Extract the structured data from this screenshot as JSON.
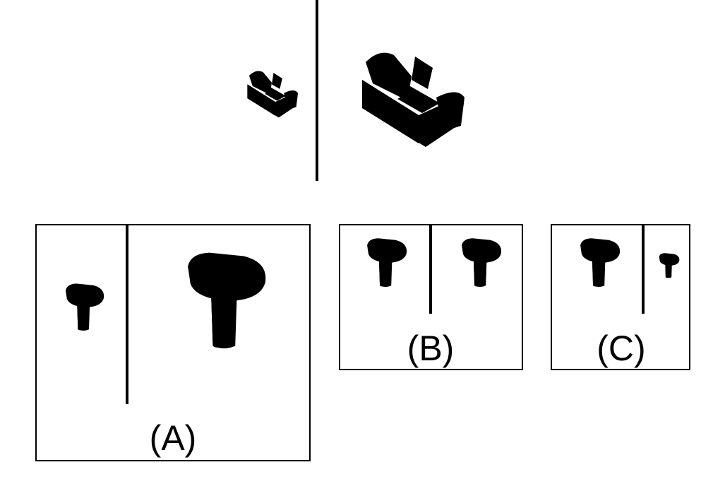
{
  "colors": {
    "blue": "#5546e8",
    "blue_dark": "#3b2bc0",
    "green": "#4cc23c",
    "green_dark": "#2f9a24"
  },
  "example": {
    "left_object": "sofa-icon",
    "right_object": "sofa-icon"
  },
  "options": [
    {
      "label": "(A)",
      "left_object": "sink-icon",
      "right_object": "sink-icon"
    },
    {
      "label": "(B)",
      "left_object": "sink-icon",
      "right_object": "sink-icon"
    },
    {
      "label": "(C)",
      "left_object": "sink-icon",
      "right_object": "sink-icon"
    }
  ]
}
